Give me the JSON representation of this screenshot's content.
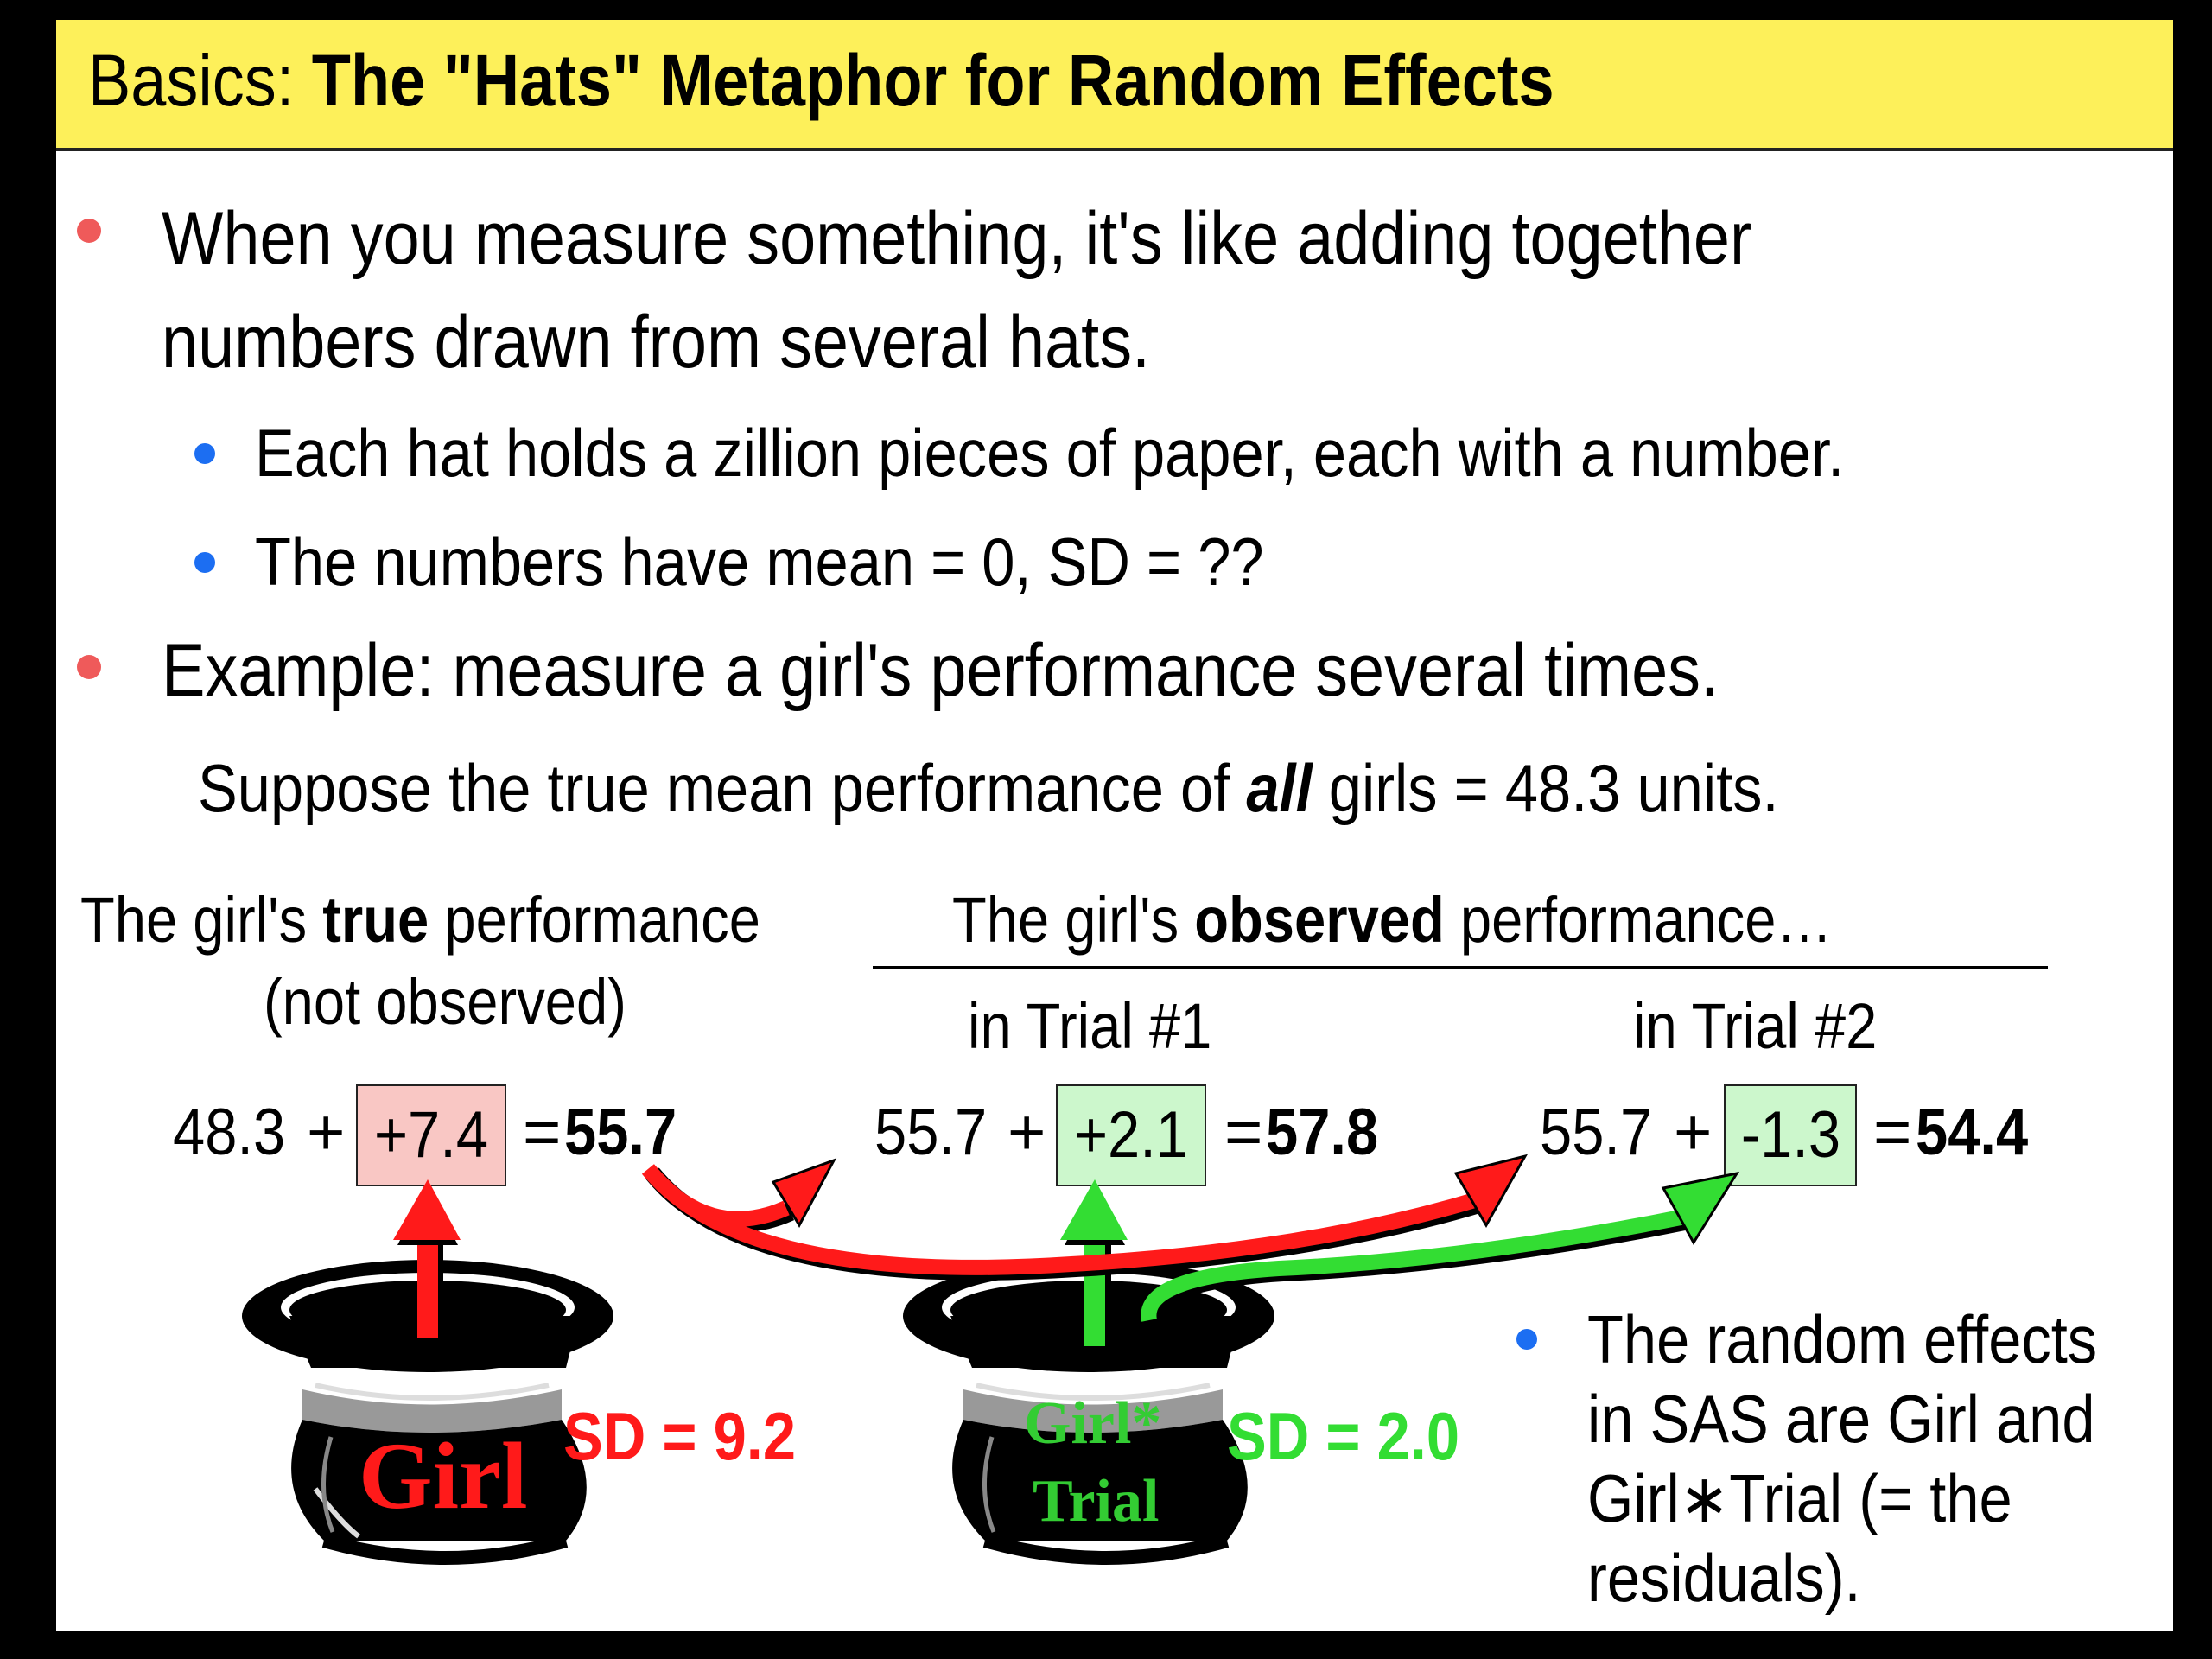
{
  "title": {
    "prefix": "Basics: ",
    "main": "The \"Hats\" Metaphor for Random Effects"
  },
  "bullets": [
    {
      "line1": "When you measure something, it's like adding together",
      "line2": "numbers drawn from several hats."
    },
    {
      "text": "Example: measure a girl's performance several times."
    }
  ],
  "subbullets": [
    "Each hat holds a zillion pieces of paper, each with a number.",
    "The numbers have mean = 0, SD = ??"
  ],
  "suppose": {
    "pre": "Suppose the true mean performance of ",
    "emph": "all",
    "post": " girls = 48.3 units."
  },
  "headers": {
    "true_pre": "The girl's ",
    "true_bold": "true",
    "true_post": " performance",
    "not_observed": "(not observed)",
    "obs_pre": "The girl's ",
    "obs_bold": "observed",
    "obs_post": " performance…",
    "trial1": "in Trial #1",
    "trial2": "in Trial #2"
  },
  "equations": [
    {
      "base": "48.3",
      "plus": "+",
      "effect": "+7.4",
      "equals": "=",
      "result": "55.7"
    },
    {
      "base": "55.7",
      "plus": "+",
      "effect": "+2.1",
      "equals": "=",
      "result": "57.8"
    },
    {
      "base": "55.7",
      "plus": "+",
      "effect": "-1.3",
      "equals": "=",
      "result": "54.4"
    }
  ],
  "hats": [
    {
      "label": "Girl",
      "sd": "SD = 9.2"
    },
    {
      "label_line1": "Girl*",
      "label_line2": "Trial",
      "sd": "SD = 2.0"
    }
  ],
  "note": {
    "line1": "The random effects",
    "line2": "in SAS are Girl and",
    "line3": "Girl∗Trial (= the",
    "line4": "residuals)."
  },
  "colors": {
    "title_bg": "#fdf05a",
    "red": "#ff1a1a",
    "green": "#33dd33",
    "pink_box": "#f9c7c4",
    "green_box": "#ccf7cc",
    "bullet_red": "#ef5a5a",
    "bullet_blue": "#1c6ef2"
  }
}
